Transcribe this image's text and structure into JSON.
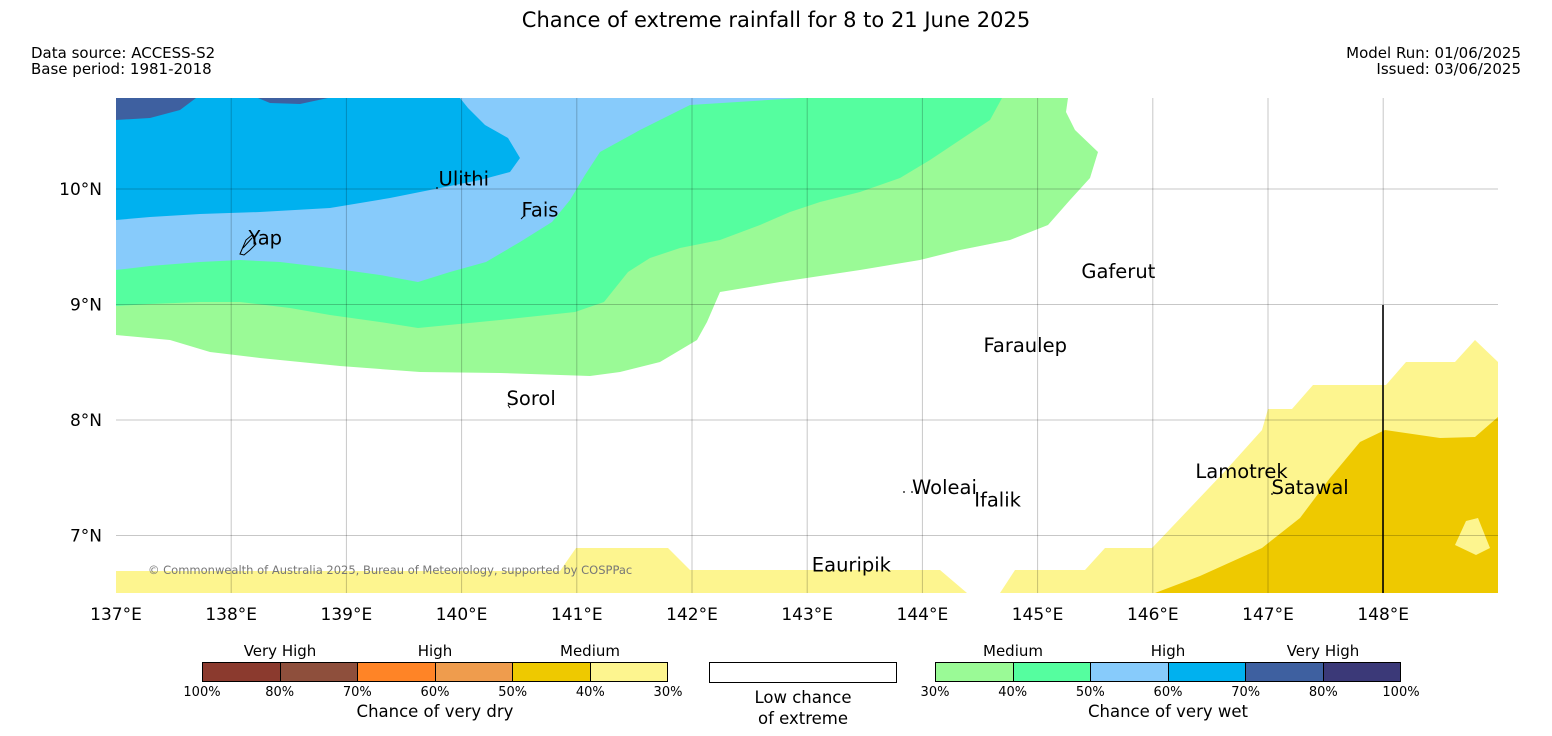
{
  "title": "Chance of extreme rainfall for 8 to 21 June 2025",
  "meta_left": {
    "data_source": "Data source: ACCESS-S2",
    "base_period": "Base period: 1981-2018"
  },
  "meta_right": {
    "model_run": "Model Run: 01/06/2025",
    "issued": "Issued: 03/06/2025"
  },
  "map": {
    "copyright": "© Commonwealth of Australia 2025, Bureau of Meteorology, supported by COSPPac",
    "lat_labels": [
      {
        "lat": 10,
        "label": "10°N"
      },
      {
        "lat": 9,
        "label": "9°N"
      },
      {
        "lat": 8,
        "label": "8°N"
      },
      {
        "lat": 7,
        "label": "7°N"
      }
    ],
    "lon_labels": [
      {
        "lon": 137,
        "label": "137°E"
      },
      {
        "lon": 138,
        "label": "138°E"
      },
      {
        "lon": 139,
        "label": "139°E"
      },
      {
        "lon": 140,
        "label": "140°E"
      },
      {
        "lon": 141,
        "label": "141°E"
      },
      {
        "lon": 142,
        "label": "142°E"
      },
      {
        "lon": 143,
        "label": "143°E"
      },
      {
        "lon": 144,
        "label": "144°E"
      },
      {
        "lon": 145,
        "label": "145°E"
      },
      {
        "lon": 146,
        "label": "146°E"
      },
      {
        "lon": 147,
        "label": "147°E"
      },
      {
        "lon": 148,
        "label": "148°E"
      }
    ],
    "places": [
      {
        "name": "Ulithi",
        "lon": 139.8,
        "lat": 10.03
      },
      {
        "name": "Fais",
        "lon": 140.52,
        "lat": 9.76
      },
      {
        "name": "Yap",
        "lon": 138.15,
        "lat": 9.52
      },
      {
        "name": "Gaferut",
        "lon": 145.38,
        "lat": 9.23
      },
      {
        "name": "Faraulep",
        "lon": 144.53,
        "lat": 8.59
      },
      {
        "name": "Sorol",
        "lon": 140.39,
        "lat": 8.13
      },
      {
        "name": "Woleai",
        "lon": 143.91,
        "lat": 7.36
      },
      {
        "name": "Ifalik",
        "lon": 144.45,
        "lat": 7.25
      },
      {
        "name": "Lamotrek",
        "lon": 146.37,
        "lat": 7.5
      },
      {
        "name": "Satawal",
        "lon": 147.03,
        "lat": 7.36
      },
      {
        "name": "Eauripik",
        "lon": 143.04,
        "lat": 6.69
      }
    ]
  },
  "legend_dry": {
    "categories": [
      "Very High",
      "High",
      "Medium"
    ],
    "ticks": [
      "100%",
      "80%",
      "70%",
      "60%",
      "50%",
      "40%",
      "30%"
    ],
    "colors": [
      "#8b3a2e",
      "#8e4f3c",
      "#ff8426",
      "#ef9c4d",
      "#eec900",
      "#fdf58f"
    ],
    "caption": "Chance of very dry"
  },
  "legend_low": {
    "caption_line1": "Low chance",
    "caption_line2": "of extreme"
  },
  "legend_wet": {
    "categories": [
      "Medium",
      "High",
      "Very High"
    ],
    "ticks": [
      "30%",
      "40%",
      "50%",
      "60%",
      "70%",
      "80%",
      "100%"
    ],
    "colors": [
      "#9afa96",
      "#55fe9f",
      "#87cbfb",
      "#00b1ef",
      "#3e60a0",
      "#3b3978"
    ],
    "caption": "Chance of very wet"
  }
}
